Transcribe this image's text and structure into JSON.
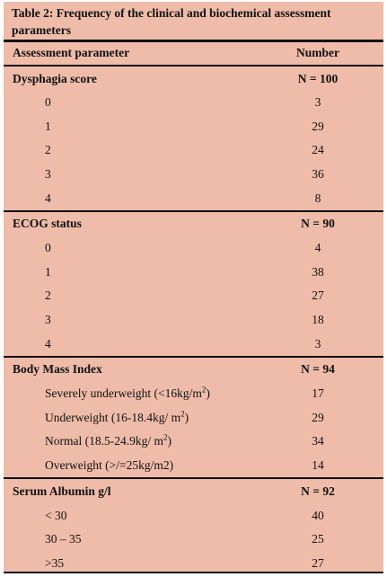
{
  "caption": "Table 2: Frequency of the clinical and biochemical assessment parameters",
  "columns": {
    "parameter": "Assessment parameter",
    "number": "Number"
  },
  "dysphagia": {
    "label": "Dysphagia score",
    "n": "N = 100",
    "rows": [
      {
        "label": "0",
        "value": "3"
      },
      {
        "label": "1",
        "value": "29"
      },
      {
        "label": "2",
        "value": "24"
      },
      {
        "label": "3",
        "value": "36"
      },
      {
        "label": "4",
        "value": "8"
      }
    ]
  },
  "ecog": {
    "label": "ECOG status",
    "n": "N  = 90",
    "rows": [
      {
        "label": "0",
        "value": "4"
      },
      {
        "label": "1",
        "value": "38"
      },
      {
        "label": "2",
        "value": "27"
      },
      {
        "label": "3",
        "value": "18"
      },
      {
        "label": "4",
        "value": "3"
      }
    ]
  },
  "bmi": {
    "label": "Body Mass Index",
    "n": "N = 94",
    "rows": [
      {
        "label_main": "Severely underweight (<16kg/m",
        "label_sup": "2",
        "label_end": ")",
        "value": "17"
      },
      {
        "label_main": "Underweight (16-18.4kg/ m",
        "label_sup": "2",
        "label_end": ")",
        "value": "29"
      },
      {
        "label_main": "Normal (18.5-24.9kg/ m",
        "label_sup": "2",
        "label_end": ")",
        "value": "34"
      },
      {
        "label_main": "Overweight (>/=25kg/m2)",
        "label_sup": "",
        "label_end": "",
        "value": "14"
      }
    ]
  },
  "albumin": {
    "label": "Serum Albumin g/l",
    "n": "N = 92",
    "rows": [
      {
        "label": "< 30",
        "value": "40"
      },
      {
        "label": "30 – 35",
        "value": "25"
      },
      {
        "label": ">35",
        "value": "27"
      }
    ]
  }
}
